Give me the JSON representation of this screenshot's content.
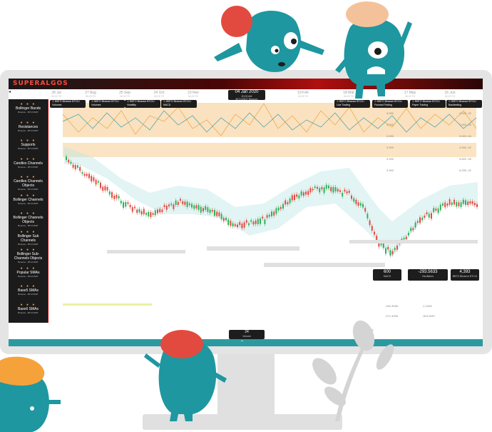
{
  "app": {
    "logo_main": "SUPER",
    "logo_accent": "ALGOS"
  },
  "timeline": [
    {
      "date": "28 Jul",
      "sub": "06:29 TH"
    },
    {
      "date": "27 Aug",
      "sub": "06:29 TH"
    },
    {
      "date": "25 Sep",
      "sub": "06:29 TH"
    },
    {
      "date": "24 Oct",
      "sub": "06:29 TH"
    },
    {
      "date": "23 Nov",
      "sub": "06:29 TH"
    },
    {
      "date": "19 Feb",
      "sub": "06:29 TH"
    },
    {
      "date": "18 Mar",
      "sub": "06:29 TH"
    },
    {
      "date": "17 May",
      "sub": "06:29 TH"
    },
    {
      "date": "16 Jun",
      "sub": "06:29 TH"
    }
  ],
  "current_date": {
    "date": "04 Jan 2020",
    "time": "00:00 AM",
    "market": "BTC/USDT Binance"
  },
  "sidebar": {
    "items": [
      {
        "label": "Bollinger Bands",
        "sub": "Binance - BTC/USDT"
      },
      {
        "label": "Resistances",
        "sub": "Binance - BTC/USDT"
      },
      {
        "label": "Supports",
        "sub": "Binance - BTC/USDT"
      },
      {
        "label": "Candles Channels",
        "sub": "Binance - BTC/USDT"
      },
      {
        "label": "Candles Channels Objects",
        "sub": "Binance - BTC/USDT"
      },
      {
        "label": "Bollinger Channels",
        "sub": "Binance - BTC/USDT"
      },
      {
        "label": "Bollinger Channels Objects",
        "sub": "Binance - BTC/USDT"
      },
      {
        "label": "Bollinger Sub Channels",
        "sub": "Binance - BTC/USDT"
      },
      {
        "label": "Bollinger Sub-Channels Objects",
        "sub": "Binance - BTC/USDT"
      },
      {
        "label": "Popular SMAs",
        "sub": "Binance - BTC/USDT"
      },
      {
        "label": "Base5 SMAs",
        "sub": "Binance - BTC/USDT"
      },
      {
        "label": "Base6 SMAs",
        "sub": "Binance - BTC/USDT"
      }
    ]
  },
  "top_panels_left": [
    {
      "title": "BBTO Binance BTC/U",
      "sub": "Volumes"
    },
    {
      "title": "BBTO Binance BTC/U",
      "sub": "Volumes"
    },
    {
      "title": "BBTO Binance BTC/U",
      "sub": "Volatility"
    },
    {
      "title": "BBTO Binance BTC/U",
      "sub": "MACD"
    }
  ],
  "top_panels_right": [
    {
      "title": "BBTO Binance BTC/U",
      "sub": "Live Trading"
    },
    {
      "title": "BBTO Binance BTC/U",
      "sub": "Forward Testing"
    },
    {
      "title": "BBTO Binance BTC/U",
      "sub": "Paper Trading"
    },
    {
      "title": "BBTO Binance BTC/U",
      "sub": "Backtesting"
    }
  ],
  "readouts": [
    {
      "value": "600",
      "label": "MACD"
    },
    {
      "value": "-293.5633",
      "label": "Oscillators"
    },
    {
      "value": "4,393",
      "label": "BBTO Binance BTC/U"
    }
  ],
  "bottom_badge": {
    "value": "24",
    "label": "Volume"
  },
  "price_axis": [
    {
      "a": "3,590",
      "b": "4,500 -32"
    },
    {
      "a": "3,590",
      "b": "7,000 -53"
    },
    {
      "a": "3,990",
      "b": "9,000 -64"
    },
    {
      "a": "3,990",
      "b": "4,996 -92"
    },
    {
      "a": "3,990",
      "b": "5,600 -93"
    },
    {
      "a": "3,990",
      "b": "6,295 -92"
    }
  ],
  "indicator_axis": [
    "-254.3996",
    "-1.2345",
    "-271.4906",
    "-303.9557"
  ],
  "colors": {
    "teal": "#2b9aa0",
    "red": "#e34a3f",
    "peach": "#f4c29a",
    "orange": "#f6a23a",
    "dark": "#1b1b1b"
  }
}
